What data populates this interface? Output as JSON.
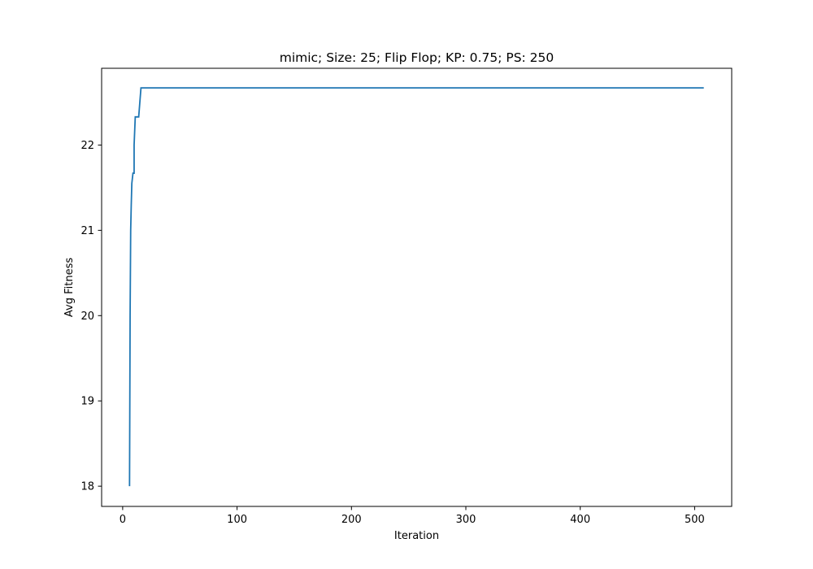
{
  "chart_data": {
    "type": "line",
    "title": "mimic; Size: 25; Flip Flop; KP: 0.75; PS: 250",
    "xlabel": "Iteration",
    "ylabel": "Avg Fitness",
    "xlim": [
      -18.4,
      532.4
    ],
    "ylim": [
      17.763,
      22.9
    ],
    "xticks": [
      0,
      100,
      200,
      300,
      400,
      500
    ],
    "yticks": [
      18,
      19,
      20,
      21,
      22
    ],
    "grid": false,
    "legend": "none",
    "series": [
      {
        "color": "#1f77b4",
        "x": [
          6,
          6.5,
          7,
          7.5,
          8,
          9,
          10,
          10,
          11,
          11.5,
          12,
          14,
          16,
          508
        ],
        "y": [
          18.0,
          20.0,
          21.0,
          21.3,
          21.55,
          21.67,
          21.67,
          22.0,
          22.33,
          22.33,
          22.33,
          22.33,
          22.67,
          22.67
        ]
      }
    ]
  }
}
